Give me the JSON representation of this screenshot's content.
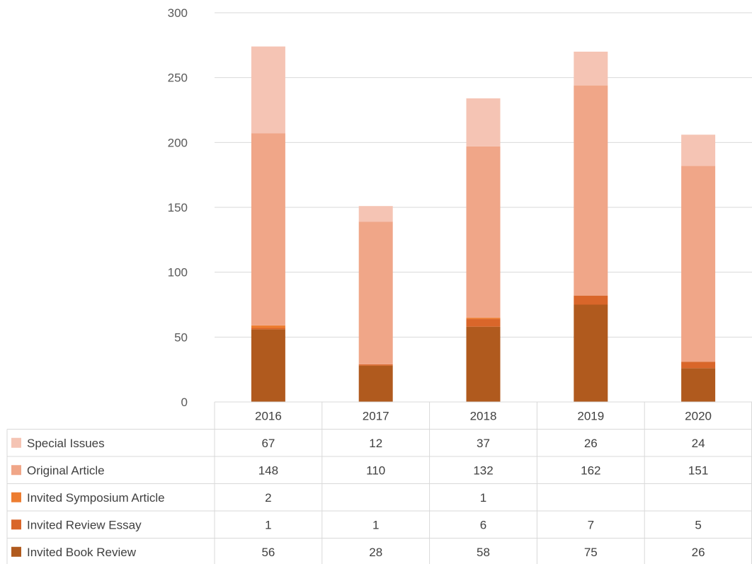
{
  "chart_data": {
    "type": "bar",
    "stacked": true,
    "categories": [
      "2016",
      "2017",
      "2018",
      "2019",
      "2020"
    ],
    "ylim": [
      0,
      300
    ],
    "yticks": [
      0,
      50,
      100,
      150,
      200,
      250,
      300
    ],
    "grid": true,
    "legend": "data table (left)",
    "series": [
      {
        "name": "Special Issues",
        "color": "#f5c4b4",
        "values": [
          67,
          12,
          37,
          26,
          24
        ]
      },
      {
        "name": "Original Article",
        "color": "#f0a688",
        "values": [
          148,
          110,
          132,
          162,
          151
        ]
      },
      {
        "name": "Invited Symposium Article",
        "color": "#ed7d31",
        "values": [
          2,
          null,
          1,
          null,
          null
        ]
      },
      {
        "name": "Invited Review Essay",
        "color": "#d9662a",
        "values": [
          1,
          1,
          6,
          7,
          5
        ]
      },
      {
        "name": "Invited Book Review",
        "color": "#b05a1e",
        "values": [
          56,
          28,
          58,
          75,
          26
        ]
      }
    ]
  }
}
